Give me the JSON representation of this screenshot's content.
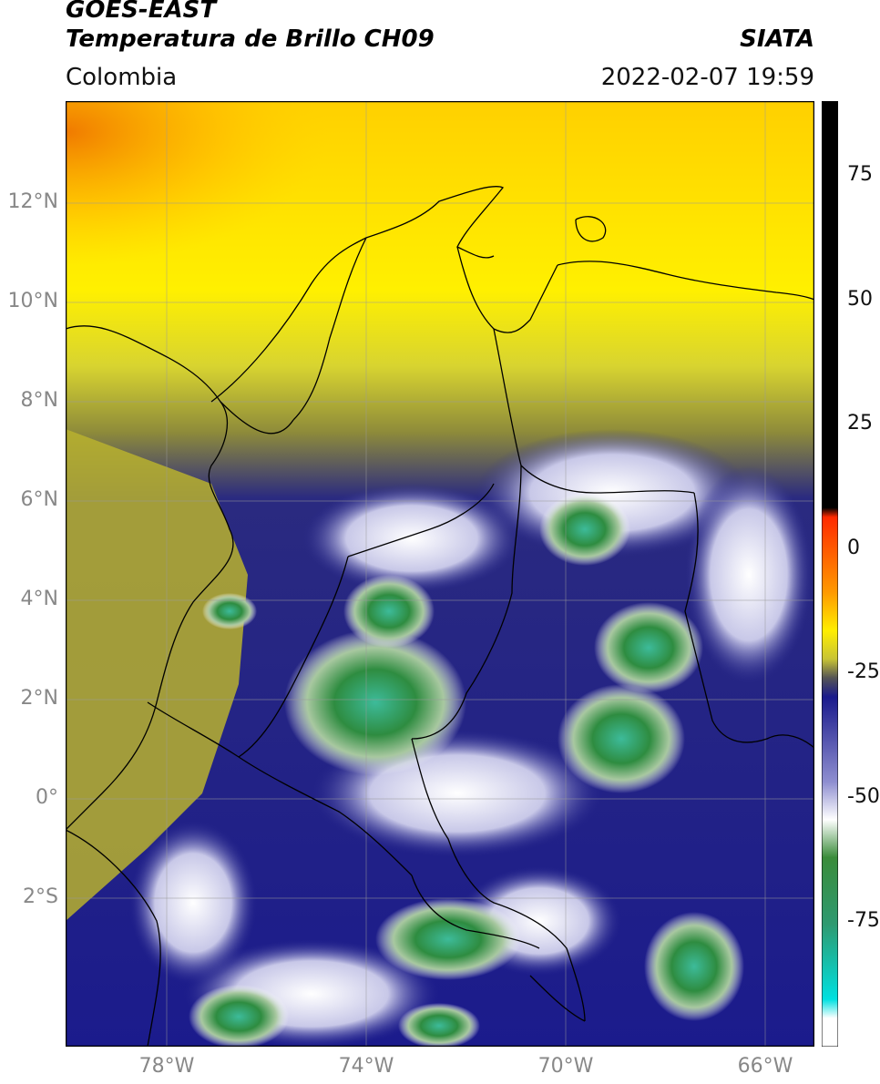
{
  "header": {
    "line1": "GOES-EAST",
    "line2": "Temperatura de Brillo CH09",
    "source": "SIATA",
    "region": "Colombia",
    "datetime": "2022-02-07 19:59"
  },
  "map": {
    "lat_ticks": [
      "12°N",
      "10°N",
      "8°N",
      "6°N",
      "4°N",
      "2°N",
      "0°",
      "2°S"
    ],
    "lon_ticks": [
      "78°W",
      "74°W",
      "70°W",
      "66°W"
    ],
    "colors": {
      "warm_orange": "#f59a00",
      "yellow": "#ffe600",
      "olive": "#8f8c3c",
      "navy": "#1a1a8c",
      "white": "#ffffff",
      "green": "#2e8b2e",
      "teal": "#3ab39a",
      "coast": "#000000",
      "grid": "#9a9a9a"
    }
  },
  "colorbar": {
    "ticks": [
      "75",
      "50",
      "25",
      "0",
      "-25",
      "-50",
      "-75"
    ],
    "tick_values": [
      75,
      50,
      25,
      0,
      -25,
      -50,
      -75
    ],
    "range": [
      -100,
      90
    ]
  }
}
